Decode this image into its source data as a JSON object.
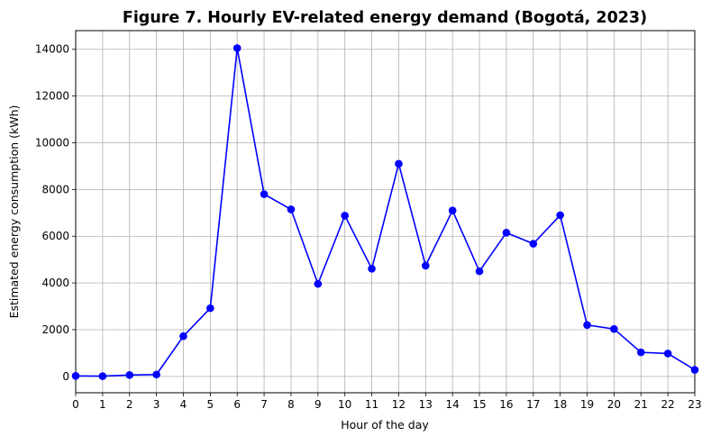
{
  "chart_data": {
    "type": "line",
    "title": "Figure 7. Hourly EV-related energy demand (Bogotá, 2023)",
    "xlabel": "Hour of the day",
    "ylabel": "Estimated energy consumption (kWh)",
    "x": [
      0,
      1,
      2,
      3,
      4,
      5,
      6,
      7,
      8,
      9,
      10,
      11,
      12,
      13,
      14,
      15,
      16,
      17,
      18,
      19,
      20,
      21,
      22,
      23
    ],
    "x_ticks": [
      "0",
      "1",
      "2",
      "3",
      "4",
      "5",
      "6",
      "7",
      "8",
      "9",
      "10",
      "11",
      "12",
      "13",
      "14",
      "15",
      "16",
      "17",
      "18",
      "19",
      "20",
      "21",
      "22",
      "23"
    ],
    "y_ticks": [
      "0",
      "2000",
      "4000",
      "6000",
      "8000",
      "10000",
      "12000",
      "14000"
    ],
    "xlim": [
      0,
      23
    ],
    "ylim": [
      -700,
      14800
    ],
    "grid": true,
    "marker": "circle",
    "series": [
      {
        "values": [
          20,
          10,
          60,
          80,
          1720,
          2920,
          14050,
          7800,
          7150,
          3960,
          6880,
          4610,
          9100,
          4740,
          7100,
          4500,
          6150,
          5680,
          6900,
          2200,
          2030,
          1030,
          980,
          280
        ],
        "color": "#0000ff"
      }
    ]
  }
}
